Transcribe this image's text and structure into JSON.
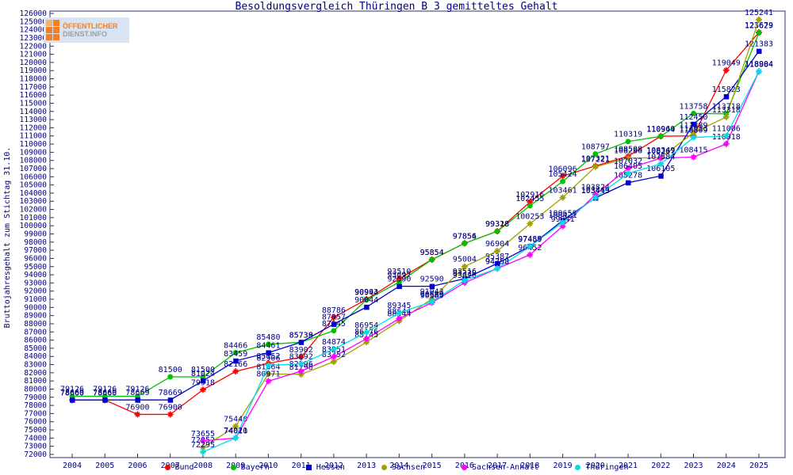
{
  "page": {
    "title": "Besoldungsvergleich Thüringen B 3 gemitteltes Gehalt"
  },
  "logo": {
    "line1": "ÖFFENTLICHER",
    "line2": "DIENST.INFO"
  },
  "chart_data": {
    "type": "line",
    "title": "Besoldungsvergleich Thüringen B 3 gemitteltes Gehalt",
    "xlabel": "",
    "ylabel": "Bruttojahresgehalt zum Stichtag 31.10.",
    "ylim": [
      72000,
      126000
    ],
    "ytick_step": 1000,
    "grid": false,
    "legend_position": "bottom",
    "point_labels": true,
    "label_color": "#000080",
    "axis_color": "#303060",
    "categories": [
      2004,
      2005,
      2006,
      2007,
      2008,
      2009,
      2010,
      2011,
      2012,
      2013,
      2014,
      2015,
      2016,
      2017,
      2018,
      2019,
      2020,
      2021,
      2022,
      2023,
      2024,
      2025
    ],
    "series": [
      {
        "name": "Bund",
        "color": "#ff0000",
        "marker": "star",
        "values": [
          78660,
          78660,
          76900,
          76900,
          79918,
          82166,
          83152,
          83902,
          88786,
          90993,
          93510,
          95854,
          97856,
          99328,
          102916,
          106096,
          107321,
          108508,
          110969,
          111013,
          119049,
          123679
        ]
      },
      {
        "name": "Bayern",
        "color": "#00c000",
        "marker": "circle",
        "values": [
          79126,
          79126,
          79126,
          81500,
          81500,
          84466,
          85480,
          85739,
          87145,
          90944,
          93097,
          95854,
          97854,
          99318,
          102455,
          105424,
          108797,
          110319,
          110944,
          113758,
          113718,
          123629
        ]
      },
      {
        "name": "Hessen",
        "color": "#0000d0",
        "marker": "square",
        "values": [
          78669,
          78669,
          78669,
          78669,
          81024,
          83459,
          84461,
          85738,
          87957,
          90044,
          92590,
          92590,
          93516,
          95387,
          97485,
          100650,
          103413,
          105278,
          106105,
          112450,
          115823,
          121383
        ]
      },
      {
        "name": "Sachsen",
        "color": "#a0a000",
        "marker": "star",
        "values": [
          null,
          null,
          null,
          null,
          72852,
          75440,
          81864,
          81796,
          83352,
          85745,
          88344,
          91043,
          95004,
          96904,
          100253,
          103461,
          107221,
          108286,
          108349,
          111389,
          113318,
          125241
        ]
      },
      {
        "name": "Sachsen-Anhalt",
        "color": "#ff00ff",
        "marker": "star",
        "values": [
          null,
          null,
          null,
          null,
          73655,
          74010,
          80971,
          82196,
          83951,
          86176,
          88644,
          90589,
          93026,
          94752,
          96452,
          99941,
          103824,
          107032,
          108267,
          108415,
          110018,
          118884
        ]
      },
      {
        "name": "Thüringen",
        "color": "#00dde5",
        "marker": "star",
        "values": [
          null,
          null,
          null,
          null,
          72295,
          74021,
          82906,
          83092,
          84874,
          86954,
          89345,
          90689,
          93320,
          94758,
          97459,
          100421,
          103449,
          106405,
          107584,
          110809,
          111006,
          118904
        ]
      }
    ]
  }
}
